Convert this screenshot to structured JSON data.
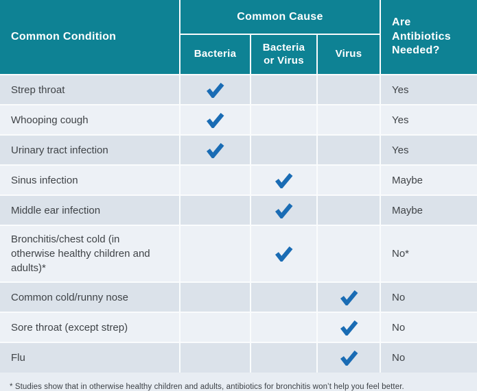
{
  "chart_data": {
    "type": "table",
    "header": {
      "condition": "Common Condition",
      "cause_group": "Common Cause",
      "cause_columns": [
        "Bacteria",
        "Bacteria or Virus",
        "Virus"
      ],
      "antibiotics": "Are Antibiotics Needed?"
    },
    "rows": [
      {
        "condition": "Strep throat",
        "bacteria": true,
        "bacteria_or_virus": false,
        "virus": false,
        "answer": "Yes"
      },
      {
        "condition": "Whooping cough",
        "bacteria": true,
        "bacteria_or_virus": false,
        "virus": false,
        "answer": "Yes"
      },
      {
        "condition": "Urinary tract infection",
        "bacteria": true,
        "bacteria_or_virus": false,
        "virus": false,
        "answer": "Yes"
      },
      {
        "condition": "Sinus infection",
        "bacteria": false,
        "bacteria_or_virus": true,
        "virus": false,
        "answer": "Maybe"
      },
      {
        "condition": "Middle ear infection",
        "bacteria": false,
        "bacteria_or_virus": true,
        "virus": false,
        "answer": "Maybe"
      },
      {
        "condition": "Bronchitis/chest cold (in otherwise healthy children and adults)*",
        "bacteria": false,
        "bacteria_or_virus": true,
        "virus": false,
        "answer": "No*"
      },
      {
        "condition": "Common cold/runny nose",
        "bacteria": false,
        "bacteria_or_virus": false,
        "virus": true,
        "answer": "No"
      },
      {
        "condition": "Sore throat (except strep)",
        "bacteria": false,
        "bacteria_or_virus": false,
        "virus": true,
        "answer": "No"
      },
      {
        "condition": "Flu",
        "bacteria": false,
        "bacteria_or_virus": false,
        "virus": true,
        "answer": "No"
      }
    ],
    "footnote": "* Studies show that in otherwise healthy children and adults, antibiotics for bronchitis won’t help you feel better."
  },
  "icons": {
    "check": "check-icon"
  },
  "colors": {
    "header_teal": "#0e8294",
    "row_dark": "#dbe2ea",
    "row_light": "#edf1f6",
    "footnote_bg": "#e8edf3",
    "check_blue": "#1a6cb4",
    "text_dark": "#3f4347",
    "divider": "#fafcfd"
  }
}
